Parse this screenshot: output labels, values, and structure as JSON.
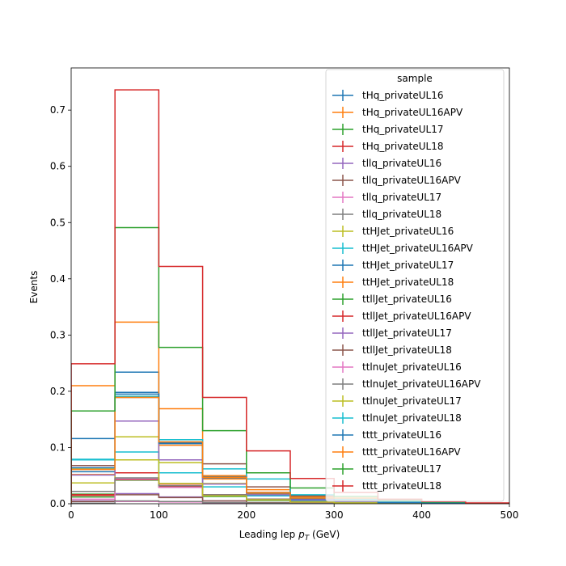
{
  "chart_data": {
    "type": "histogram-step",
    "xlabel": "Leading lep",
    "xlabel_sub": "T",
    "xlabel_unit": "(GeV)",
    "ylabel": "Events",
    "xlim": [
      0,
      500
    ],
    "ylim": [
      0,
      0.775
    ],
    "xticks": [
      0,
      100,
      200,
      300,
      400,
      500
    ],
    "yticks": [
      0.0,
      0.1,
      0.2,
      0.3,
      0.4,
      0.5,
      0.6,
      0.7
    ],
    "bin_edges": [
      0,
      50,
      100,
      150,
      200,
      250,
      300,
      350,
      400,
      450,
      500
    ],
    "legend": {
      "title": "sample",
      "placement": "top-right"
    },
    "series": [
      {
        "name": "tHq_privateUL16",
        "color": "#1f77b4",
        "values": [
          0.057,
          0.198,
          0.107,
          0.046,
          0.018,
          0.008,
          0.004,
          0.002,
          0.001,
          0.0005
        ]
      },
      {
        "name": "tHq_privateUL16APV",
        "color": "#ff7f0e",
        "values": [
          0.052,
          0.19,
          0.104,
          0.044,
          0.017,
          0.007,
          0.003,
          0.0015,
          0.001,
          0.0005
        ]
      },
      {
        "name": "tHq_privateUL17",
        "color": "#2ca02c",
        "values": [
          0.012,
          0.045,
          0.03,
          0.013,
          0.006,
          0.003,
          0.0015,
          0.0008,
          0.0004,
          0.0002
        ]
      },
      {
        "name": "tHq_privateUL18",
        "color": "#d62728",
        "values": [
          0.015,
          0.055,
          0.035,
          0.015,
          0.007,
          0.003,
          0.0015,
          0.0008,
          0.0004,
          0.0002
        ]
      },
      {
        "name": "tllq_privateUL16",
        "color": "#9467bd",
        "values": [
          0.005,
          0.018,
          0.012,
          0.005,
          0.002,
          0.001,
          0.0005,
          0.0003,
          0.0002,
          0.0001
        ]
      },
      {
        "name": "tllq_privateUL16APV",
        "color": "#8c564b",
        "values": [
          0.004,
          0.016,
          0.011,
          0.005,
          0.002,
          0.001,
          0.0005,
          0.0003,
          0.0002,
          0.0001
        ]
      },
      {
        "name": "tllq_privateUL17",
        "color": "#e377c2",
        "values": [
          0.001,
          0.004,
          0.003,
          0.001,
          0.0005,
          0.0003,
          0.0002,
          0.0001,
          0.0001,
          0.0
        ]
      },
      {
        "name": "tllq_privateUL18",
        "color": "#7f7f7f",
        "values": [
          0.001,
          0.005,
          0.004,
          0.002,
          0.001,
          0.0004,
          0.0002,
          0.0001,
          0.0001,
          0.0
        ]
      },
      {
        "name": "ttHJet_privateUL16",
        "color": "#bcbd22",
        "values": [
          0.037,
          0.119,
          0.073,
          0.036,
          0.016,
          0.007,
          0.004,
          0.002,
          0.001,
          0.0005
        ]
      },
      {
        "name": "ttHJet_privateUL16APV",
        "color": "#17becf",
        "values": [
          0.079,
          0.092,
          0.055,
          0.03,
          0.014,
          0.006,
          0.003,
          0.002,
          0.001,
          0.0005
        ]
      },
      {
        "name": "ttHJet_privateUL17",
        "color": "#1f77b4",
        "values": [
          0.116,
          0.234,
          0.11,
          0.049,
          0.02,
          0.009,
          0.005,
          0.002,
          0.001,
          0.0005
        ]
      },
      {
        "name": "ttHJet_privateUL18",
        "color": "#ff7f0e",
        "values": [
          0.21,
          0.323,
          0.169,
          0.05,
          0.025,
          0.012,
          0.006,
          0.003,
          0.0015,
          0.0008
        ]
      },
      {
        "name": "ttllJet_privateUL16",
        "color": "#2ca02c",
        "values": [
          0.017,
          0.042,
          0.03,
          0.015,
          0.008,
          0.004,
          0.002,
          0.001,
          0.0005,
          0.0003
        ]
      },
      {
        "name": "ttllJet_privateUL16APV",
        "color": "#d62728",
        "values": [
          0.016,
          0.043,
          0.031,
          0.016,
          0.008,
          0.004,
          0.002,
          0.001,
          0.0005,
          0.0003
        ]
      },
      {
        "name": "ttllJet_privateUL17",
        "color": "#9467bd",
        "values": [
          0.051,
          0.147,
          0.078,
          0.035,
          0.016,
          0.007,
          0.004,
          0.002,
          0.001,
          0.0005
        ]
      },
      {
        "name": "ttllJet_privateUL18",
        "color": "#8c564b",
        "values": [
          0.068,
          0.189,
          0.109,
          0.071,
          0.03,
          0.014,
          0.007,
          0.003,
          0.0015,
          0.0008
        ]
      },
      {
        "name": "ttlnuJet_privateUL16",
        "color": "#e377c2",
        "values": [
          0.008,
          0.044,
          0.029,
          0.014,
          0.007,
          0.003,
          0.0015,
          0.0008,
          0.0004,
          0.0002
        ]
      },
      {
        "name": "ttlnuJet_privateUL16APV",
        "color": "#7f7f7f",
        "values": [
          0.022,
          0.046,
          0.032,
          0.016,
          0.008,
          0.004,
          0.002,
          0.001,
          0.0005,
          0.0003
        ]
      },
      {
        "name": "ttlnuJet_privateUL17",
        "color": "#bcbd22",
        "values": [
          0.063,
          0.078,
          0.036,
          0.014,
          0.007,
          0.003,
          0.0015,
          0.0008,
          0.0004,
          0.0002
        ]
      },
      {
        "name": "ttlnuJet_privateUL18",
        "color": "#17becf",
        "values": [
          0.078,
          0.191,
          0.114,
          0.062,
          0.044,
          0.016,
          0.008,
          0.004,
          0.002,
          0.001
        ]
      },
      {
        "name": "tttt_privateUL16",
        "color": "#1f77b4",
        "values": [
          0.064,
          0.195,
          0.108,
          0.048,
          0.02,
          0.01,
          0.005,
          0.002,
          0.001,
          0.0005
        ]
      },
      {
        "name": "tttt_privateUL16APV",
        "color": "#ff7f0e",
        "values": [
          0.061,
          0.189,
          0.11,
          0.047,
          0.02,
          0.01,
          0.01,
          0.006,
          0.004,
          0.001
        ]
      },
      {
        "name": "tttt_privateUL17",
        "color": "#2ca02c",
        "values": [
          0.165,
          0.491,
          0.278,
          0.13,
          0.055,
          0.028,
          0.013,
          0.006,
          0.003,
          0.001
        ]
      },
      {
        "name": "tttt_privateUL18",
        "color": "#d62728",
        "values": [
          0.249,
          0.736,
          0.422,
          0.189,
          0.094,
          0.045,
          0.02,
          0.008,
          0.004,
          0.0015
        ]
      }
    ]
  }
}
